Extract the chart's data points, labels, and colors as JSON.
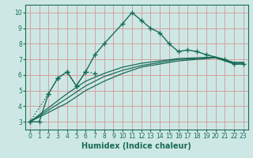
{
  "xlabel": "Humidex (Indice chaleur)",
  "bg_color": "#cde8e4",
  "grid_color": "#d4a0a0",
  "line_color": "#1a6b5a",
  "xlim": [
    -0.5,
    23.5
  ],
  "ylim": [
    2.5,
    10.5
  ],
  "xticks": [
    0,
    1,
    2,
    3,
    4,
    5,
    6,
    7,
    8,
    9,
    10,
    11,
    12,
    13,
    14,
    15,
    16,
    17,
    18,
    19,
    20,
    21,
    22,
    23
  ],
  "yticks": [
    3,
    4,
    5,
    6,
    7,
    8,
    9,
    10
  ],
  "main_line": {
    "x": [
      0,
      1,
      2,
      3,
      4,
      5,
      6,
      7,
      8,
      10,
      11,
      12,
      13,
      14,
      15,
      16,
      17,
      18,
      19,
      21,
      22,
      23
    ],
    "y": [
      3.0,
      3.0,
      4.8,
      5.8,
      6.2,
      5.3,
      6.2,
      7.3,
      8.0,
      9.3,
      10.0,
      9.5,
      9.0,
      8.7,
      8.0,
      7.5,
      7.6,
      7.5,
      7.3,
      7.0,
      6.7,
      6.7
    ]
  },
  "dotted_line": {
    "x": [
      0,
      2,
      3,
      4,
      5,
      6,
      7
    ],
    "y": [
      3.0,
      4.8,
      5.8,
      6.2,
      5.3,
      6.2,
      6.1
    ]
  },
  "smooth_lines": [
    {
      "x": [
        0,
        4,
        6,
        8,
        10,
        12,
        14,
        16,
        18,
        20,
        22,
        23
      ],
      "y": [
        3.0,
        4.2,
        5.0,
        5.6,
        6.1,
        6.5,
        6.7,
        6.9,
        7.0,
        7.1,
        6.7,
        6.7
      ]
    },
    {
      "x": [
        0,
        4,
        6,
        8,
        10,
        12,
        14,
        16,
        18,
        20,
        22,
        23
      ],
      "y": [
        3.0,
        4.5,
        5.3,
        5.9,
        6.3,
        6.6,
        6.8,
        7.0,
        7.05,
        7.1,
        6.8,
        6.8
      ]
    },
    {
      "x": [
        0,
        4,
        6,
        8,
        10,
        12,
        14,
        16,
        18,
        20,
        22,
        23
      ],
      "y": [
        3.0,
        4.8,
        5.6,
        6.1,
        6.5,
        6.75,
        6.9,
        7.05,
        7.1,
        7.15,
        6.8,
        6.8
      ]
    }
  ]
}
